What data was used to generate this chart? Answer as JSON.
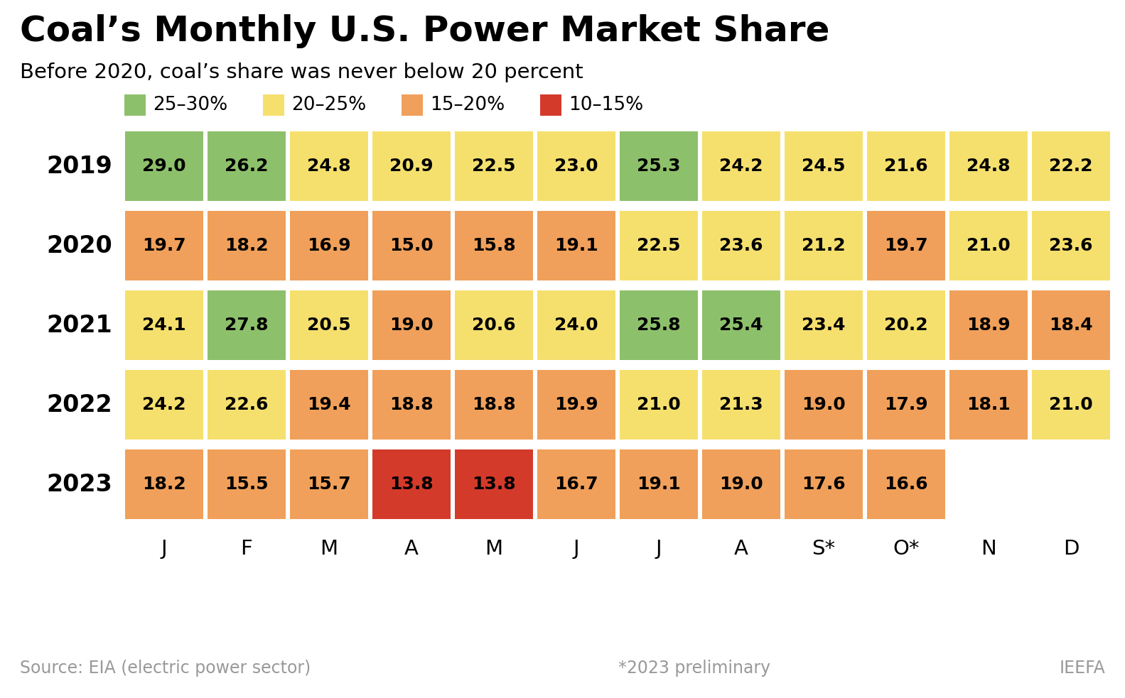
{
  "title": "Coal’s Monthly U.S. Power Market Share",
  "subtitle": "Before 2020, coal’s share was never below 20 percent",
  "years": [
    "2019",
    "2020",
    "2021",
    "2022",
    "2023"
  ],
  "months": [
    "J",
    "F",
    "M",
    "A",
    "M",
    "J",
    "J",
    "A",
    "S*",
    "O*",
    "N",
    "D"
  ],
  "values": [
    [
      29.0,
      26.2,
      24.8,
      20.9,
      22.5,
      23.0,
      25.3,
      24.2,
      24.5,
      21.6,
      24.8,
      22.2
    ],
    [
      19.7,
      18.2,
      16.9,
      15.0,
      15.8,
      19.1,
      22.5,
      23.6,
      21.2,
      19.7,
      21.0,
      23.6
    ],
    [
      24.1,
      27.8,
      20.5,
      19.0,
      20.6,
      24.0,
      25.8,
      25.4,
      23.4,
      20.2,
      18.9,
      18.4
    ],
    [
      24.2,
      22.6,
      19.4,
      18.8,
      18.8,
      19.9,
      21.0,
      21.3,
      19.0,
      17.9,
      18.1,
      21.0
    ],
    [
      18.2,
      15.5,
      15.7,
      13.8,
      13.8,
      16.7,
      19.1,
      19.0,
      17.6,
      16.6,
      null,
      null
    ]
  ],
  "color_bands": [
    {
      "min": 25,
      "max": 100,
      "color": "#8dc06b"
    },
    {
      "min": 20,
      "max": 25,
      "color": "#f5e06e"
    },
    {
      "min": 15,
      "max": 20,
      "color": "#f0a05a"
    },
    {
      "min": 10,
      "max": 15,
      "color": "#d43a2a"
    }
  ],
  "legend_labels": [
    "25–30%",
    "20–25%",
    "15–20%",
    "10–15%"
  ],
  "legend_colors": [
    "#8dc06b",
    "#f5e06e",
    "#f0a05a",
    "#d43a2a"
  ],
  "source_text": "Source: EIA (electric power sector)",
  "preliminary_text": "*2023 preliminary",
  "brand_text": "IEEFA",
  "background_color": "#ffffff",
  "title_fontsize": 36,
  "subtitle_fontsize": 21,
  "cell_text_fontsize": 18,
  "year_fontsize": 24,
  "month_fontsize": 21,
  "legend_fontsize": 19,
  "footer_fontsize": 17
}
